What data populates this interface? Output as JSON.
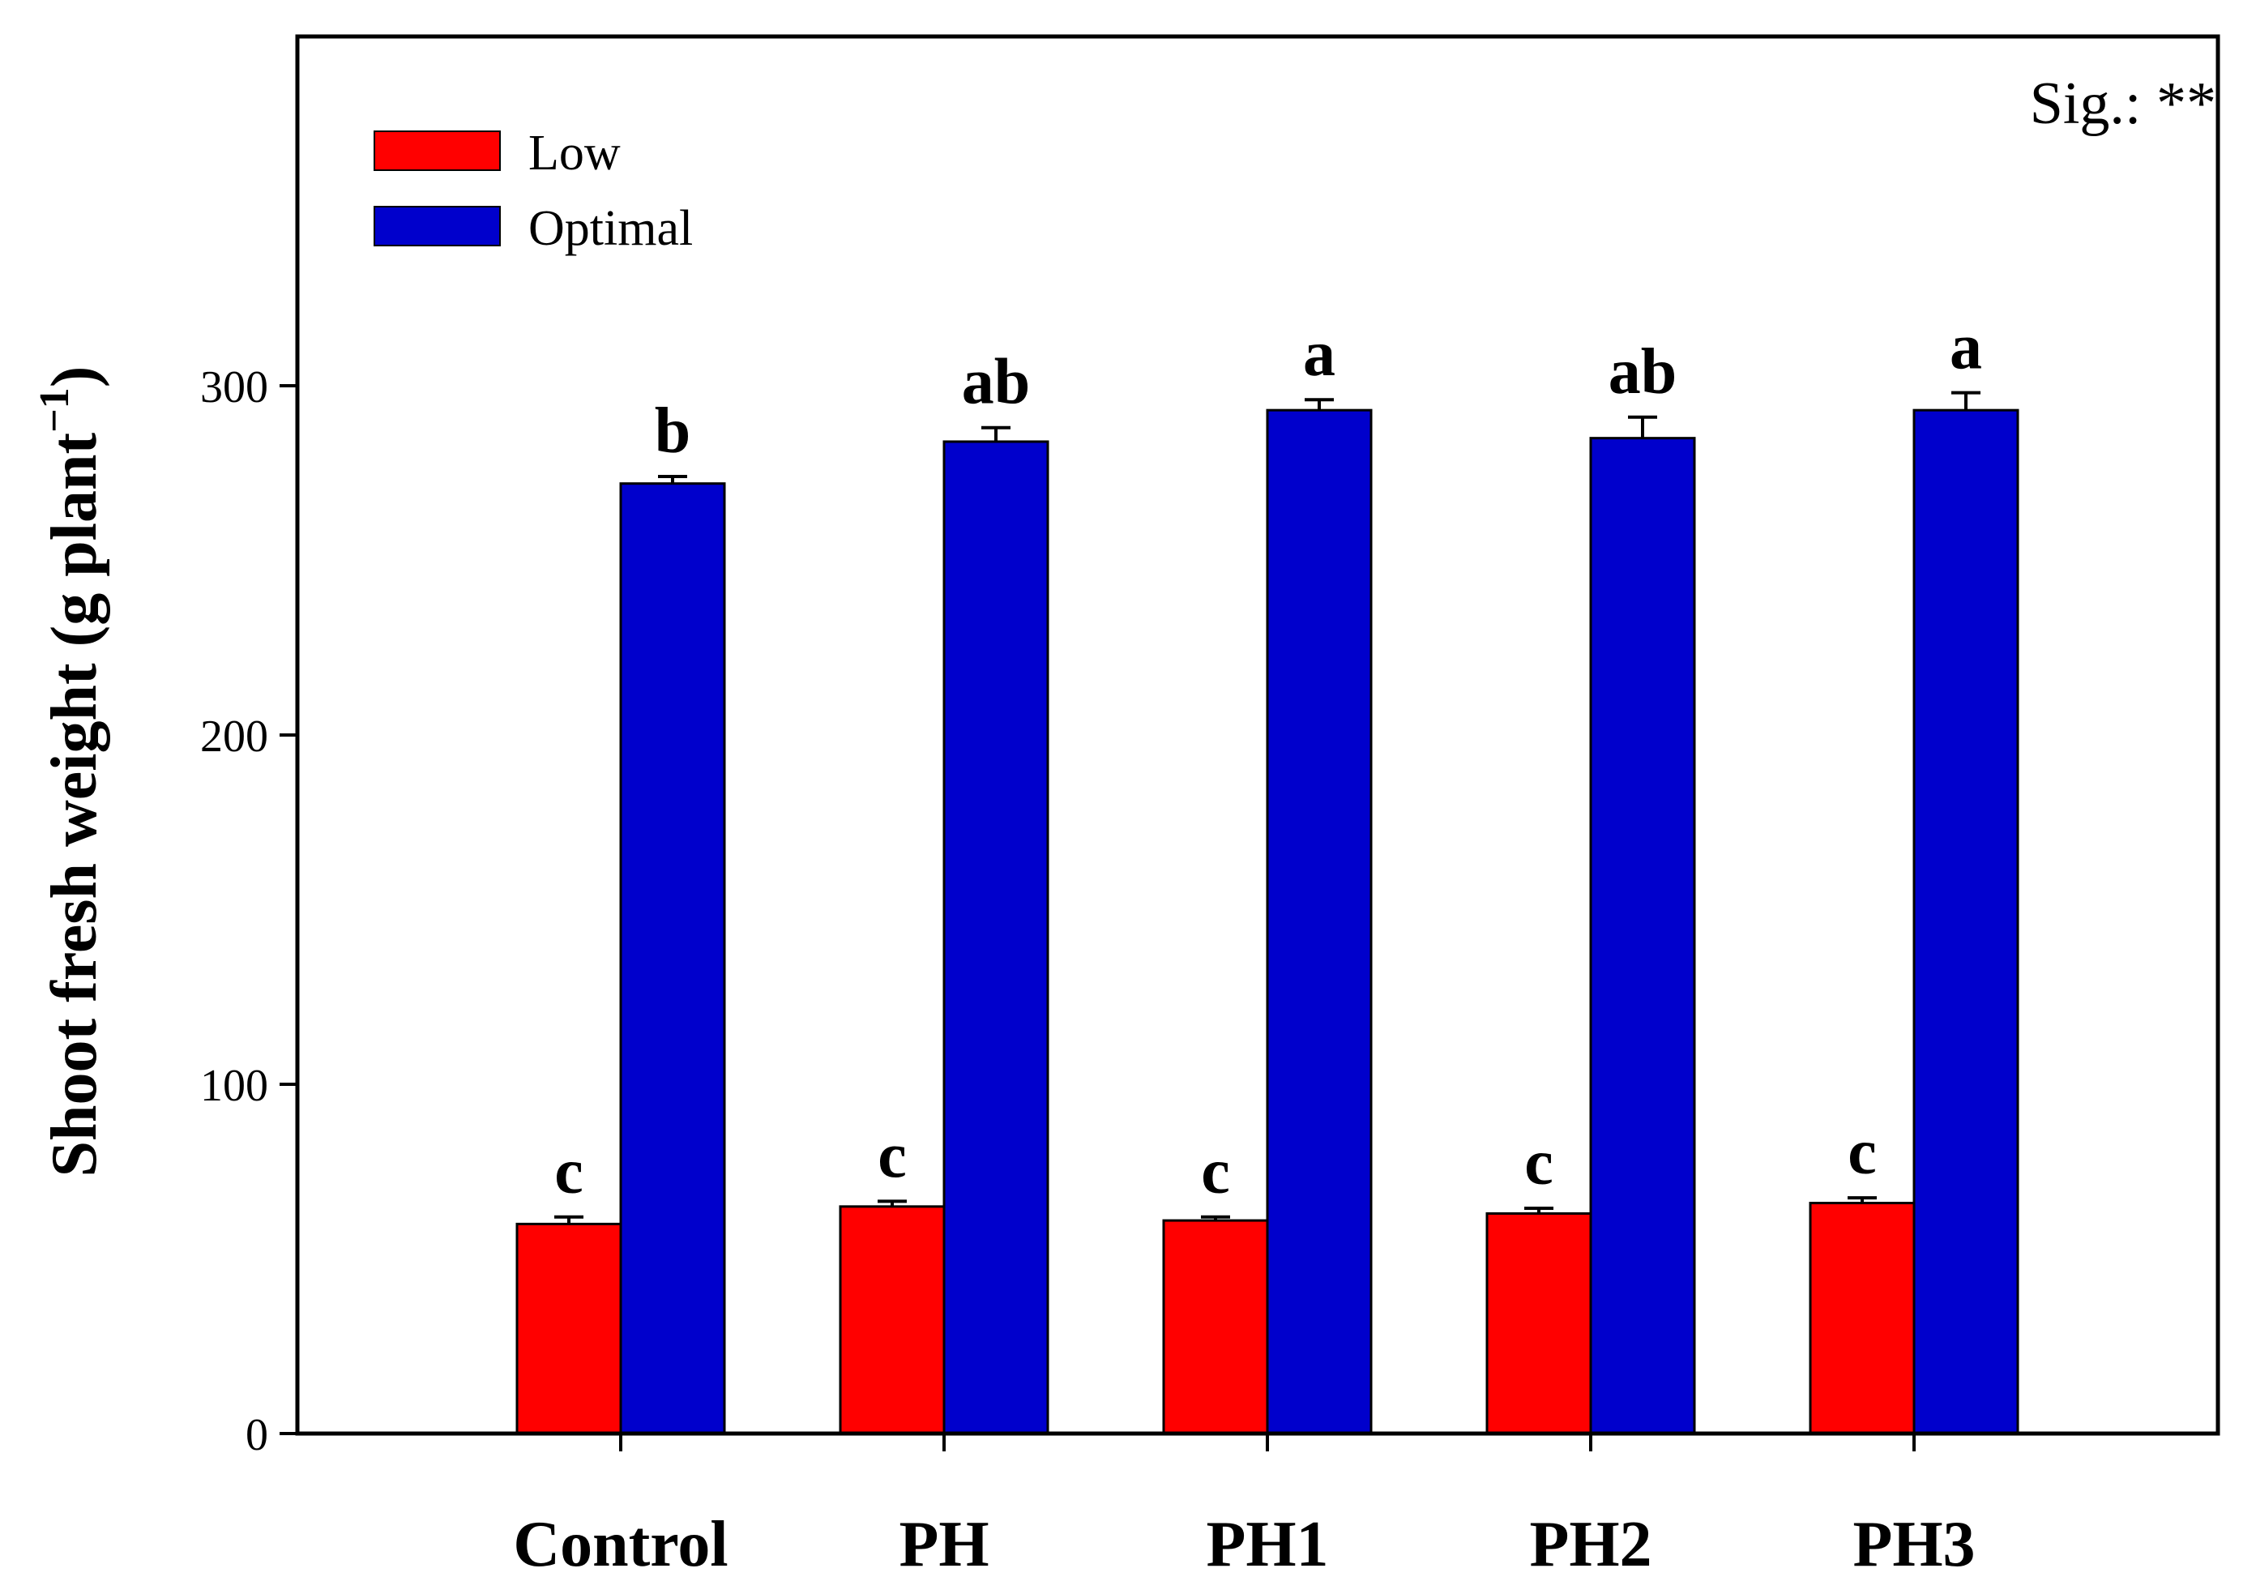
{
  "chart_data": {
    "type": "bar",
    "title": "",
    "xlabel": "",
    "ylabel": "Shoot fresh weight (g plant",
    "ylabel_superscript": "−1",
    "ylabel_suffix": ")",
    "ylim": [
      0,
      400
    ],
    "yticks": [
      "0",
      "100",
      "200",
      "300"
    ],
    "categories": [
      "Control",
      "PH",
      "PH1",
      "PH2",
      "PH3"
    ],
    "series": [
      {
        "name": "Low",
        "color": "#ff0000",
        "values": [
          60,
          65,
          61,
          63,
          66
        ],
        "errors": [
          2,
          1.5,
          1,
          1.5,
          1.5
        ],
        "significance": [
          "c",
          "c",
          "c",
          "c",
          "c"
        ]
      },
      {
        "name": "Optimal",
        "color": "#0000cc",
        "values": [
          272,
          284,
          293,
          285,
          293
        ],
        "errors": [
          2,
          4,
          3,
          6,
          5
        ],
        "significance": [
          "b",
          "ab",
          "a",
          "ab",
          "a"
        ]
      }
    ],
    "legend_position": "top-left",
    "grid": false,
    "annotation": "Sig.: **"
  }
}
